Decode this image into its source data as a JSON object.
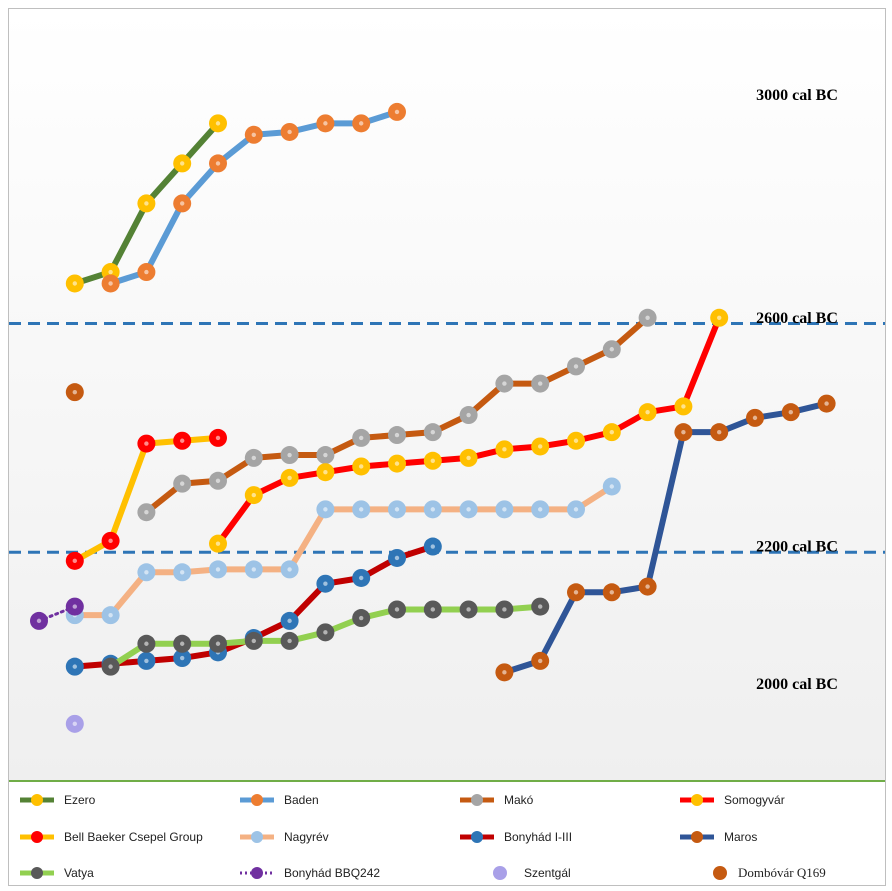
{
  "chart_data": {
    "type": "line",
    "xlim": [
      0,
      21
    ],
    "ylim": [
      1800,
      3150
    ],
    "reference_lines": [
      {
        "label": "2600 cal BC",
        "y": 2600,
        "color": "#2e75b6"
      },
      {
        "label": "2200 cal BC",
        "y": 2200,
        "color": "#2e75b6"
      }
    ],
    "annotations": [
      {
        "label": "3000 cal BC",
        "y": 3000
      },
      {
        "label": "2600 cal BC",
        "y": 2610
      },
      {
        "label": "2200 cal BC",
        "y": 2210
      },
      {
        "label": "2000 cal BC",
        "y": 1970
      }
    ],
    "series": [
      {
        "name": "Ezero",
        "line": "#548235",
        "marker": "#ffc000",
        "style": "solid",
        "x": [
          1,
          2,
          3,
          4,
          5
        ],
        "y": [
          2670,
          2690,
          2810,
          2880,
          2950
        ]
      },
      {
        "name": "Baden",
        "line": "#5b9bd5",
        "marker": "#ed7d31",
        "style": "solid",
        "x": [
          2,
          3,
          4,
          5,
          6,
          7,
          8,
          9,
          10
        ],
        "y": [
          2670,
          2690,
          2810,
          2880,
          2930,
          2935,
          2950,
          2950,
          2970
        ]
      },
      {
        "name": "Makó",
        "line": "#c55a11",
        "marker": "#a5a5a5",
        "style": "solid",
        "x": [
          3,
          4,
          5,
          6,
          7,
          8,
          9,
          10,
          11,
          12,
          13,
          14,
          15,
          16,
          17
        ],
        "y": [
          2270,
          2320,
          2325,
          2365,
          2370,
          2370,
          2400,
          2405,
          2410,
          2440,
          2495,
          2495,
          2525,
          2555,
          2610
        ]
      },
      {
        "name": "Somogyvár",
        "line": "#ff0000",
        "marker": "#ffc000",
        "style": "solid",
        "x": [
          5,
          6,
          7,
          8,
          9,
          10,
          11,
          12,
          13,
          14,
          15,
          16,
          17,
          18,
          19
        ],
        "y": [
          2215,
          2300,
          2330,
          2340,
          2350,
          2355,
          2360,
          2365,
          2380,
          2385,
          2395,
          2410,
          2445,
          2455,
          2610
        ]
      },
      {
        "name": "Bell Baeker Csepel Group",
        "line": "#ffc000",
        "marker": "#ff0000",
        "style": "solid",
        "x": [
          1,
          2,
          3,
          4,
          5
        ],
        "y": [
          2185,
          2220,
          2390,
          2395,
          2400
        ]
      },
      {
        "name": "Nagyrév",
        "line": "#f4b183",
        "marker": "#9dc3e6",
        "style": "solid",
        "x": [
          1,
          2,
          3,
          4,
          5,
          6,
          7,
          8,
          9,
          10,
          11,
          12,
          13,
          14,
          15,
          16
        ],
        "y": [
          2090,
          2090,
          2165,
          2165,
          2170,
          2170,
          2170,
          2275,
          2275,
          2275,
          2275,
          2275,
          2275,
          2275,
          2275,
          2315
        ]
      },
      {
        "name": "Bonyhád I-III",
        "line": "#c00000",
        "marker": "#2e75b6",
        "style": "solid",
        "x": [
          1,
          2,
          3,
          4,
          5,
          6,
          7,
          8,
          9,
          10,
          11
        ],
        "y": [
          2000,
          2005,
          2010,
          2015,
          2025,
          2050,
          2080,
          2145,
          2155,
          2190,
          2210
        ]
      },
      {
        "name": "Maros",
        "line": "#2f5597",
        "marker": "#c55a11",
        "style": "solid",
        "x": [
          13,
          14,
          15,
          16,
          17,
          18,
          19,
          20,
          21,
          22
        ],
        "y": [
          1990,
          2010,
          2130,
          2130,
          2140,
          2410,
          2410,
          2435,
          2445,
          2460
        ]
      },
      {
        "name": "Vatya",
        "line": "#92d050",
        "marker": "#595959",
        "style": "solid",
        "x": [
          2,
          3,
          4,
          5,
          6,
          7,
          8,
          9,
          10,
          11,
          12,
          13,
          14
        ],
        "y": [
          2000,
          2040,
          2040,
          2040,
          2045,
          2045,
          2060,
          2085,
          2100,
          2100,
          2100,
          2100,
          2105
        ]
      },
      {
        "name": "Bonyhád BBQ242",
        "line": "#7030a0",
        "marker": "#7030a0",
        "style": "dotted",
        "x": [
          0,
          1
        ],
        "y": [
          2080,
          2105
        ]
      },
      {
        "name": "Szentgál",
        "line": null,
        "marker": "#a9a0e8",
        "style": "none",
        "x": [
          1
        ],
        "y": [
          1900
        ]
      },
      {
        "name": "Dombóvár Q169",
        "line": null,
        "marker": "#c55a11",
        "style": "none",
        "x": [
          1
        ],
        "y": [
          2480
        ]
      }
    ]
  },
  "legend": {
    "items": [
      {
        "label": "Ezero"
      },
      {
        "label": "Baden"
      },
      {
        "label": "Makó"
      },
      {
        "label": "Somogyvár"
      },
      {
        "label": "Bell Baeker Csepel Group"
      },
      {
        "label": "Nagyrév"
      },
      {
        "label": "Bonyhád I-III"
      },
      {
        "label": "Maros"
      },
      {
        "label": "Vatya"
      },
      {
        "label": "Bonyhád BBQ242"
      },
      {
        "label": "Szentgál"
      },
      {
        "label": "Dombóvár Q169"
      }
    ]
  }
}
